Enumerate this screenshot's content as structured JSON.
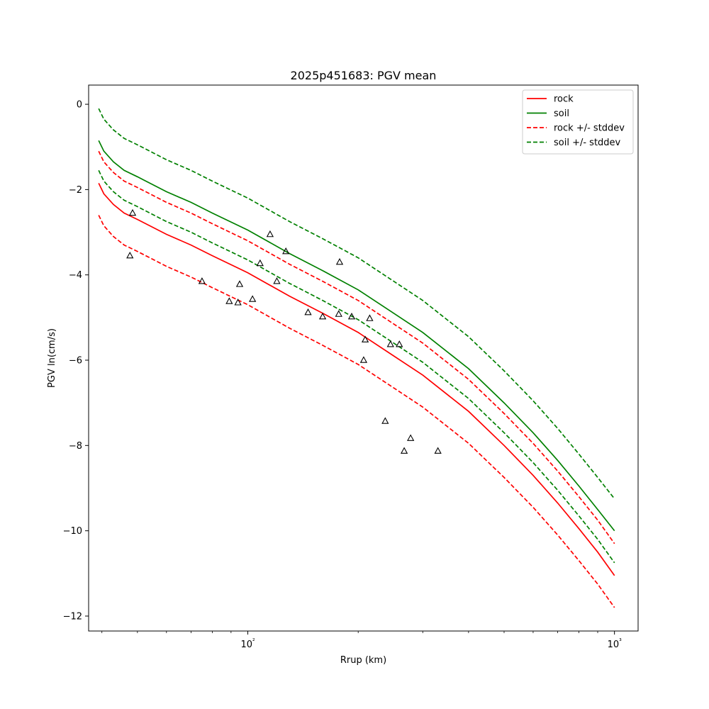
{
  "chart_data": {
    "type": "line",
    "title": "2025p451683: PGV mean",
    "xlabel": "Rrup (km)",
    "ylabel": "PGV ln(cm/s)",
    "x_scale": "log",
    "xlim": [
      36.8,
      1160
    ],
    "ylim": [
      -12.35,
      0.45
    ],
    "x_major_ticks": [
      {
        "value": 100,
        "label": "10²"
      },
      {
        "value": 1000,
        "label": "10³"
      }
    ],
    "x_minor_ticks": [
      40,
      50,
      60,
      70,
      80,
      90,
      200,
      300,
      400,
      500,
      600,
      700,
      800,
      900
    ],
    "y_ticks": [
      0,
      -2,
      -4,
      -6,
      -8,
      -10,
      -12
    ],
    "y_tick_labels": [
      "0",
      "−2",
      "−4",
      "−6",
      "−8",
      "−10",
      "−12"
    ],
    "grid": false,
    "legend_position": "top-right",
    "series": [
      {
        "name": "rock",
        "color": "#ff0000",
        "style": "solid",
        "x": [
          39.2,
          40.5,
          43,
          46,
          50,
          60,
          70,
          80,
          100,
          130,
          160,
          200,
          250,
          300,
          400,
          500,
          600,
          700,
          800,
          900,
          1000
        ],
        "y": [
          -1.85,
          -2.1,
          -2.35,
          -2.55,
          -2.7,
          -3.05,
          -3.3,
          -3.55,
          -3.95,
          -4.5,
          -4.9,
          -5.35,
          -5.9,
          -6.35,
          -7.2,
          -8.0,
          -8.7,
          -9.35,
          -9.95,
          -10.5,
          -11.05
        ]
      },
      {
        "name": "soil",
        "color": "#008000",
        "style": "solid",
        "x": [
          39.2,
          40.5,
          43,
          46,
          50,
          60,
          70,
          80,
          100,
          130,
          160,
          200,
          250,
          300,
          400,
          500,
          600,
          700,
          800,
          900,
          1000
        ],
        "y": [
          -0.85,
          -1.1,
          -1.35,
          -1.55,
          -1.7,
          -2.05,
          -2.3,
          -2.55,
          -2.95,
          -3.5,
          -3.9,
          -4.35,
          -4.9,
          -5.35,
          -6.2,
          -7.0,
          -7.7,
          -8.35,
          -8.95,
          -9.5,
          -10.0
        ]
      },
      {
        "name": "rock +/- stddev",
        "color": "#ff0000",
        "style": "dashed",
        "x": [
          39.2,
          40.5,
          43,
          46,
          50,
          60,
          70,
          80,
          100,
          130,
          160,
          200,
          250,
          300,
          400,
          500,
          600,
          700,
          800,
          900,
          1000
        ],
        "y": [
          -1.1,
          -1.35,
          -1.6,
          -1.8,
          -1.95,
          -2.3,
          -2.55,
          -2.8,
          -3.2,
          -3.75,
          -4.15,
          -4.6,
          -5.15,
          -5.6,
          -6.45,
          -7.25,
          -7.95,
          -8.6,
          -9.2,
          -9.75,
          -10.3
        ]
      },
      {
        "name": "rock +/- stddev",
        "color": "#ff0000",
        "style": "dashed",
        "legend": false,
        "x": [
          39.2,
          40.5,
          43,
          46,
          50,
          60,
          70,
          80,
          100,
          130,
          160,
          200,
          250,
          300,
          400,
          500,
          600,
          700,
          800,
          900,
          1000
        ],
        "y": [
          -2.6,
          -2.85,
          -3.1,
          -3.3,
          -3.45,
          -3.8,
          -4.05,
          -4.3,
          -4.7,
          -5.25,
          -5.65,
          -6.1,
          -6.65,
          -7.1,
          -7.95,
          -8.75,
          -9.45,
          -10.1,
          -10.7,
          -11.25,
          -11.8
        ]
      },
      {
        "name": "soil +/- stddev",
        "color": "#008000",
        "style": "dashed",
        "x": [
          39.2,
          40.5,
          43,
          46,
          50,
          60,
          70,
          80,
          100,
          130,
          160,
          200,
          250,
          300,
          400,
          500,
          600,
          700,
          800,
          900,
          1000
        ],
        "y": [
          -0.1,
          -0.35,
          -0.6,
          -0.8,
          -0.95,
          -1.3,
          -1.55,
          -1.8,
          -2.2,
          -2.75,
          -3.15,
          -3.6,
          -4.15,
          -4.6,
          -5.45,
          -6.25,
          -6.95,
          -7.6,
          -8.2,
          -8.75,
          -9.25
        ]
      },
      {
        "name": "soil +/- stddev",
        "color": "#008000",
        "style": "dashed",
        "legend": false,
        "x": [
          39.2,
          40.5,
          43,
          46,
          50,
          60,
          70,
          80,
          100,
          130,
          160,
          200,
          250,
          300,
          400,
          500,
          600,
          700,
          800,
          900,
          1000
        ],
        "y": [
          -1.55,
          -1.8,
          -2.05,
          -2.25,
          -2.4,
          -2.75,
          -3.0,
          -3.25,
          -3.65,
          -4.2,
          -4.6,
          -5.05,
          -5.6,
          -6.05,
          -6.9,
          -7.7,
          -8.4,
          -9.05,
          -9.65,
          -10.2,
          -10.75
        ]
      }
    ],
    "observations": {
      "marker": "triangle",
      "x": [
        47.7,
        48.5,
        75,
        89,
        94,
        95,
        103,
        108,
        115,
        120,
        127,
        146,
        160,
        177,
        178,
        192,
        207,
        209,
        215,
        237,
        245,
        259,
        267,
        278,
        330
      ],
      "y": [
        -3.55,
        -2.55,
        -4.15,
        -4.62,
        -4.65,
        -4.22,
        -4.57,
        -3.73,
        -3.05,
        -4.15,
        -3.45,
        -4.88,
        -4.98,
        -4.92,
        -3.7,
        -4.98,
        -6.0,
        -5.52,
        -5.02,
        -7.43,
        -5.63,
        -5.63,
        -8.13,
        -7.83,
        -8.13
      ]
    }
  }
}
